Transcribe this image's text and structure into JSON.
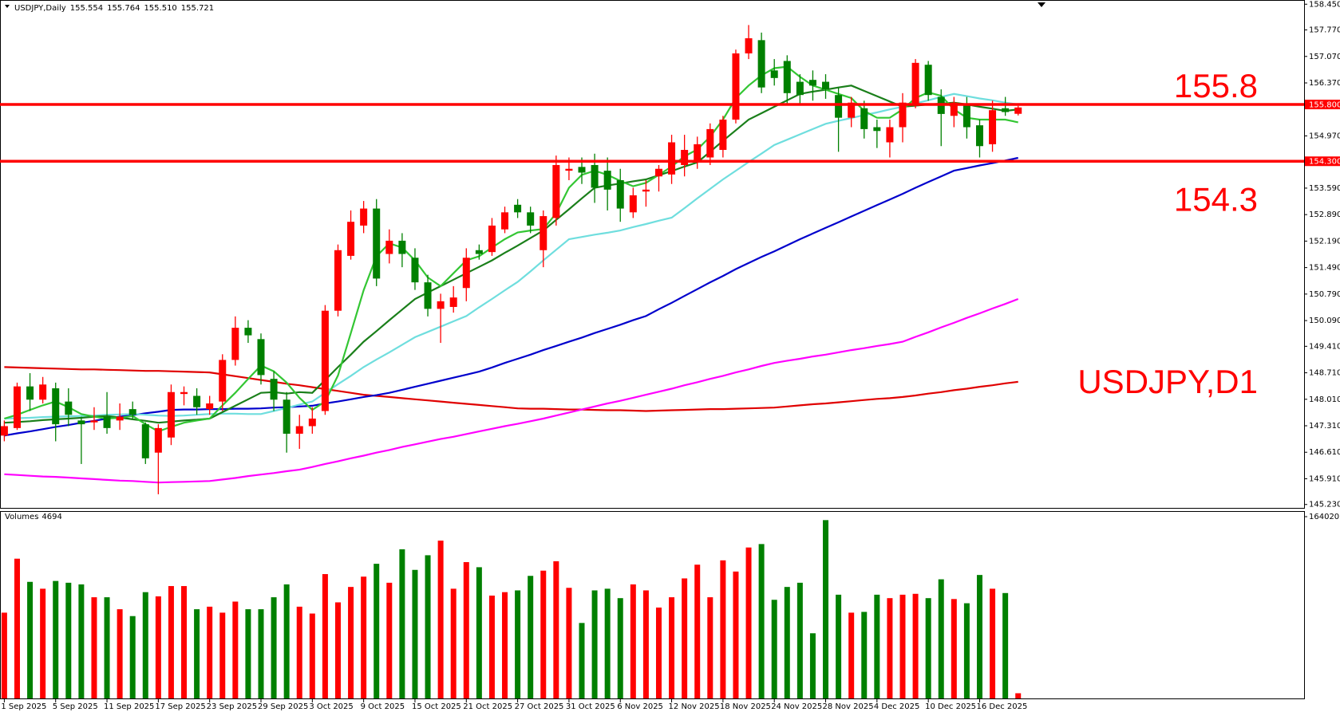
{
  "chart_data": {
    "type": "candlestick",
    "title": "USDJPY,Daily",
    "header_values": [
      {
        "value": 155.554,
        "label": "155.554"
      },
      {
        "value": 155.764,
        "label": "155.764"
      },
      {
        "value": 155.51,
        "label": "155.510"
      },
      {
        "value": 155.721,
        "label": "155.721"
      }
    ],
    "annotation": "USDJPY,D1",
    "up_color": "#ff0000",
    "down_color": "#008000",
    "categories": [
      "1 Sep 2025",
      null,
      null,
      null,
      "5 Sep 2025",
      null,
      null,
      null,
      "11 Sep 2025",
      null,
      null,
      null,
      "17 Sep 2025",
      null,
      null,
      null,
      "23 Sep 2025",
      null,
      null,
      null,
      "29 Sep 2025",
      null,
      null,
      null,
      "3 Oct 2025",
      null,
      null,
      null,
      "9 Oct 2025",
      null,
      null,
      null,
      "15 Oct 2025",
      null,
      null,
      null,
      "21 Oct 2025",
      null,
      null,
      null,
      "27 Oct 2025",
      null,
      null,
      null,
      "31 Oct 2025",
      null,
      null,
      null,
      "6 Nov 2025",
      null,
      null,
      null,
      "12 Nov 2025",
      null,
      null,
      null,
      "18 Nov 2025",
      null,
      null,
      null,
      "24 Nov 2025",
      null,
      null,
      null,
      "28 Nov 2025",
      null,
      null,
      null,
      "4 Dec 2025",
      null,
      null,
      null,
      "10 Dec 2025",
      null,
      null,
      null,
      "16 Dec 2025",
      null,
      null,
      null
    ],
    "open": [
      147.05,
      147.25,
      148.35,
      148.0,
      148.3,
      147.95,
      147.45,
      147.4,
      147.55,
      147.45,
      147.75,
      147.35,
      146.6,
      147.0,
      148.15,
      148.1,
      147.75,
      147.95,
      149.05,
      149.9,
      149.6,
      148.55,
      148.0,
      147.1,
      147.3,
      147.7,
      150.35,
      151.8,
      152.6,
      153.05,
      151.85,
      152.2,
      151.75,
      151.1,
      150.4,
      150.45,
      150.95,
      151.95,
      151.9,
      152.5,
      153.15,
      152.95,
      151.95,
      152.8,
      154.05,
      154.15,
      154.2,
      154.05,
      153.8,
      152.95,
      153.5,
      153.9,
      153.95,
      154.2,
      154.3,
      154.4,
      154.6,
      155.4,
      157.15,
      157.5,
      156.7,
      156.95,
      156.4,
      156.45,
      156.4,
      156.05,
      155.45,
      155.7,
      155.2,
      154.8,
      155.2,
      155.8,
      156.85,
      156.0,
      155.5,
      155.8,
      155.25,
      154.75,
      155.7,
      155.554
    ],
    "high": [
      147.45,
      148.45,
      148.7,
      148.6,
      148.45,
      148.3,
      147.55,
      147.8,
      148.2,
      147.9,
      147.95,
      147.4,
      147.35,
      148.4,
      148.35,
      148.3,
      148.1,
      149.2,
      150.2,
      150.1,
      149.75,
      148.75,
      148.2,
      147.6,
      147.8,
      150.5,
      152.1,
      153.0,
      153.25,
      153.3,
      152.5,
      152.4,
      152.0,
      151.3,
      150.8,
      151.0,
      152.0,
      152.1,
      152.8,
      153.1,
      153.3,
      153.1,
      153.0,
      154.45,
      154.4,
      154.4,
      154.5,
      154.4,
      154.1,
      153.6,
      153.8,
      154.2,
      155.0,
      155.0,
      154.95,
      155.3,
      155.5,
      157.25,
      157.9,
      157.7,
      157.0,
      157.1,
      156.6,
      156.7,
      156.6,
      156.25,
      156.0,
      155.9,
      155.4,
      155.4,
      156.1,
      157.0,
      156.95,
      156.2,
      156.0,
      156.0,
      155.4,
      155.9,
      156.0,
      155.764
    ],
    "low": [
      146.9,
      147.2,
      147.7,
      147.9,
      146.9,
      147.3,
      146.3,
      147.2,
      147.1,
      147.2,
      147.5,
      146.3,
      145.5,
      146.8,
      147.85,
      147.6,
      147.6,
      147.7,
      148.9,
      149.5,
      148.4,
      147.7,
      146.6,
      146.7,
      147.1,
      147.6,
      150.2,
      151.7,
      152.4,
      151.0,
      151.6,
      151.5,
      150.9,
      150.2,
      149.5,
      150.3,
      150.6,
      151.7,
      151.8,
      152.4,
      152.8,
      152.4,
      151.5,
      152.6,
      153.8,
      153.7,
      153.2,
      153.0,
      152.7,
      152.8,
      153.1,
      153.5,
      153.7,
      153.9,
      154.1,
      154.2,
      154.4,
      155.3,
      157.0,
      156.1,
      156.3,
      155.8,
      155.8,
      155.9,
      155.95,
      154.55,
      155.2,
      154.9,
      154.65,
      154.4,
      154.8,
      155.7,
      155.9,
      154.7,
      155.2,
      154.9,
      154.4,
      154.55,
      155.5,
      155.51
    ],
    "close": [
      147.3,
      148.35,
      148.0,
      148.4,
      147.35,
      147.6,
      147.35,
      147.45,
      147.25,
      147.55,
      147.6,
      146.45,
      147.25,
      148.2,
      148.2,
      147.8,
      147.9,
      149.05,
      149.9,
      149.7,
      148.65,
      148.0,
      147.1,
      147.3,
      147.5,
      150.35,
      151.95,
      152.7,
      153.05,
      151.2,
      152.2,
      151.85,
      151.1,
      150.4,
      150.6,
      150.7,
      151.75,
      151.85,
      152.6,
      152.95,
      152.95,
      152.6,
      152.85,
      154.2,
      154.1,
      154.0,
      153.6,
      153.55,
      153.05,
      153.4,
      153.55,
      154.1,
      154.8,
      154.6,
      154.75,
      155.15,
      155.4,
      157.15,
      157.55,
      156.25,
      156.5,
      156.1,
      156.05,
      156.3,
      156.2,
      155.45,
      155.85,
      155.15,
      155.1,
      155.2,
      155.85,
      156.9,
      156.05,
      155.55,
      155.85,
      155.2,
      154.7,
      155.65,
      155.6,
      155.721
    ],
    "overlays": [
      {
        "color": "#e00000",
        "values": [
          148.86,
          148.85,
          148.84,
          148.83,
          148.82,
          148.81,
          148.8,
          148.8,
          148.79,
          148.78,
          148.77,
          148.76,
          148.76,
          148.75,
          148.74,
          148.73,
          148.72,
          148.67,
          148.62,
          148.57,
          148.52,
          148.47,
          148.42,
          148.38,
          148.33,
          148.28,
          148.23,
          148.18,
          148.13,
          148.1,
          148.07,
          148.04,
          148.01,
          147.98,
          147.95,
          147.92,
          147.89,
          147.86,
          147.83,
          147.8,
          147.77,
          147.76,
          147.76,
          147.75,
          147.74,
          147.74,
          147.73,
          147.72,
          147.72,
          147.71,
          147.7,
          147.71,
          147.72,
          147.73,
          147.74,
          147.75,
          147.75,
          147.76,
          147.77,
          147.78,
          147.79,
          147.82,
          147.85,
          147.88,
          147.9,
          147.93,
          147.96,
          147.99,
          148.02,
          148.04,
          148.07,
          148.11,
          148.16,
          148.2,
          148.25,
          148.29,
          148.34,
          148.38,
          148.43,
          148.47
        ]
      },
      {
        "color": "#ff00ff",
        "values": [
          146.03,
          146.01,
          145.99,
          145.97,
          145.96,
          145.94,
          145.92,
          145.9,
          145.88,
          145.86,
          145.85,
          145.83,
          145.81,
          145.82,
          145.83,
          145.84,
          145.85,
          145.89,
          145.93,
          145.98,
          146.02,
          146.06,
          146.11,
          146.15,
          146.22,
          146.3,
          146.37,
          146.45,
          146.52,
          146.6,
          146.67,
          146.75,
          146.82,
          146.89,
          146.96,
          147.02,
          147.09,
          147.16,
          147.23,
          147.3,
          147.36,
          147.43,
          147.5,
          147.58,
          147.66,
          147.74,
          147.82,
          147.9,
          147.97,
          148.05,
          148.13,
          148.21,
          148.29,
          148.38,
          148.46,
          148.55,
          148.63,
          148.72,
          148.8,
          148.89,
          148.97,
          149.03,
          149.08,
          149.14,
          149.19,
          149.25,
          149.31,
          149.36,
          149.42,
          149.47,
          149.53,
          149.66,
          149.78,
          149.91,
          150.03,
          150.16,
          150.28,
          150.41,
          150.53,
          150.66
        ]
      },
      {
        "color": "#0000cc",
        "values": [
          147.05,
          147.11,
          147.16,
          147.22,
          147.28,
          147.33,
          147.39,
          147.44,
          147.5,
          147.55,
          147.59,
          147.64,
          147.68,
          147.73,
          147.74,
          147.74,
          147.75,
          147.75,
          147.76,
          147.76,
          147.77,
          147.79,
          147.8,
          147.82,
          147.84,
          147.9,
          147.95,
          148.01,
          148.07,
          148.12,
          148.18,
          148.26,
          148.34,
          148.42,
          148.5,
          148.58,
          148.66,
          148.74,
          148.85,
          148.97,
          149.08,
          149.19,
          149.31,
          149.42,
          149.53,
          149.64,
          149.76,
          149.87,
          149.98,
          150.1,
          150.21,
          150.39,
          150.56,
          150.74,
          150.92,
          151.1,
          151.27,
          151.45,
          151.61,
          151.77,
          151.92,
          152.08,
          152.24,
          152.39,
          152.54,
          152.69,
          152.84,
          152.99,
          153.14,
          153.29,
          153.44,
          153.6,
          153.75,
          153.9,
          154.05,
          154.12,
          154.19,
          154.25,
          154.32,
          154.39
        ]
      },
      {
        "color": "#6fdede",
        "values": [
          147.5,
          147.51,
          147.52,
          147.54,
          147.55,
          147.56,
          147.57,
          147.58,
          147.6,
          147.61,
          147.62,
          147.6,
          147.58,
          147.57,
          147.58,
          147.6,
          147.62,
          147.63,
          147.63,
          147.62,
          147.62,
          147.7,
          147.78,
          147.87,
          147.95,
          148.18,
          148.41,
          148.63,
          148.86,
          149.06,
          149.25,
          149.45,
          149.65,
          149.79,
          149.93,
          150.07,
          150.21,
          150.44,
          150.66,
          150.89,
          151.11,
          151.39,
          151.68,
          151.96,
          152.24,
          152.3,
          152.36,
          152.41,
          152.47,
          152.56,
          152.64,
          152.73,
          152.81,
          153.06,
          153.32,
          153.57,
          153.82,
          154.05,
          154.28,
          154.5,
          154.73,
          154.87,
          155.01,
          155.15,
          155.29,
          155.37,
          155.44,
          155.52,
          155.59,
          155.67,
          155.74,
          155.83,
          155.91,
          156.0,
          156.08,
          156.02,
          155.96,
          155.91,
          155.85,
          155.8
        ]
      },
      {
        "color": "#1a7f1a",
        "values": [
          147.39,
          147.41,
          147.43,
          147.46,
          147.48,
          147.5,
          147.52,
          147.55,
          147.57,
          147.53,
          147.48,
          147.44,
          147.39,
          147.42,
          147.45,
          147.47,
          147.5,
          147.67,
          147.84,
          148.01,
          148.18,
          148.2,
          148.16,
          148.2,
          148.18,
          148.52,
          148.86,
          149.19,
          149.53,
          149.81,
          150.1,
          150.38,
          150.66,
          150.83,
          151.0,
          151.17,
          151.34,
          151.51,
          151.68,
          151.88,
          152.07,
          152.27,
          152.47,
          152.75,
          153.03,
          153.32,
          153.6,
          153.66,
          153.71,
          153.77,
          153.82,
          153.93,
          154.04,
          154.16,
          154.27,
          154.55,
          154.84,
          155.12,
          155.4,
          155.57,
          155.74,
          155.91,
          156.08,
          156.14,
          156.19,
          156.25,
          156.3,
          156.16,
          156.02,
          155.88,
          155.74,
          155.77,
          155.8,
          155.82,
          155.85,
          155.8,
          155.74,
          155.69,
          155.63,
          155.67
        ]
      },
      {
        "color": "#33c633",
        "values": [
          147.5,
          147.6,
          147.73,
          147.85,
          147.95,
          147.8,
          147.62,
          147.55,
          147.5,
          147.52,
          147.57,
          147.35,
          147.16,
          147.28,
          147.39,
          147.45,
          147.5,
          147.85,
          148.18,
          148.55,
          148.9,
          148.75,
          148.45,
          148.05,
          147.73,
          147.95,
          148.64,
          149.76,
          150.89,
          151.79,
          152.13,
          152.02,
          151.68,
          151.23,
          151.0,
          151.34,
          151.68,
          151.79,
          152.02,
          152.24,
          152.42,
          152.47,
          152.51,
          152.92,
          153.6,
          153.94,
          154.05,
          153.94,
          153.78,
          153.64,
          153.73,
          153.94,
          154.16,
          154.43,
          154.61,
          154.95,
          155.4,
          155.97,
          156.3,
          156.57,
          156.76,
          156.8,
          156.53,
          156.3,
          156.19,
          156.08,
          155.97,
          155.63,
          155.45,
          155.45,
          155.67,
          155.97,
          156.12,
          156.03,
          155.67,
          155.45,
          155.4,
          155.4,
          155.4,
          155.33
        ]
      }
    ],
    "hlines": [
      {
        "value": 155.8,
        "label": "155.8",
        "axis_label": "155.800",
        "color": "#ff0000"
      },
      {
        "value": 154.3,
        "label": "154.3",
        "axis_label": "154.300",
        "color": "#ff0000"
      }
    ],
    "ylim": [
      145.14,
      158.54
    ],
    "yticks": [
      {
        "value": 158.45,
        "label": "158.450"
      },
      {
        "value": 157.77,
        "label": "157.770"
      },
      {
        "value": 157.07,
        "label": "157.070"
      },
      {
        "value": 156.37,
        "label": "156.370"
      },
      {
        "value": 154.97,
        "label": "154.970"
      },
      {
        "value": 153.59,
        "label": "153.590"
      },
      {
        "value": 152.89,
        "label": "152.890"
      },
      {
        "value": 152.19,
        "label": "152.190"
      },
      {
        "value": 151.49,
        "label": "151.490"
      },
      {
        "value": 150.79,
        "label": "150.790"
      },
      {
        "value": 150.09,
        "label": "150.090"
      },
      {
        "value": 149.41,
        "label": "149.410"
      },
      {
        "value": 148.71,
        "label": "148.710"
      },
      {
        "value": 148.01,
        "label": "148.010"
      },
      {
        "value": 147.31,
        "label": "147.310"
      },
      {
        "value": 146.61,
        "label": "146.610"
      },
      {
        "value": 145.91,
        "label": "145.910"
      },
      {
        "value": 145.23,
        "label": "145.230"
      }
    ],
    "volume": {
      "title": "Volumes",
      "values": [
        77400,
        126100,
        105200,
        99000,
        106000,
        104400,
        102900,
        91300,
        91300,
        80500,
        74300,
        95900,
        92100,
        101400,
        101400,
        80500,
        82800,
        77400,
        87400,
        80500,
        80500,
        91300,
        102900,
        82800,
        76600,
        112200,
        86700,
        100600,
        109900,
        121500,
        104400,
        134600,
        116000,
        129200,
        142400,
        99000,
        123000,
        118400,
        92800,
        95900,
        97500,
        110600,
        115300,
        123800,
        99800,
        68100,
        97500,
        99000,
        90500,
        102900,
        97500,
        82000,
        91300,
        108300,
        120700,
        91300,
        124600,
        114500,
        136200,
        139300,
        89000,
        100600,
        104400,
        58800,
        160900,
        93600,
        77400,
        78100,
        93600,
        90500,
        93600,
        94400,
        90500,
        107500,
        89700,
        85900,
        111400,
        99000,
        95100,
        4694
      ],
      "ylim": [
        0,
        164020
      ],
      "yticks": [
        164020
      ]
    }
  }
}
